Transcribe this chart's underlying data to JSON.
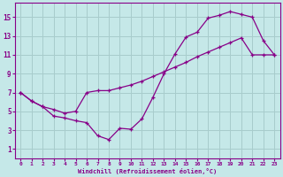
{
  "xlabel": "Windchill (Refroidissement éolien,°C)",
  "bg_color": "#c5e8e8",
  "line_color": "#880088",
  "grid_color": "#a8cccc",
  "xlim": [
    -0.5,
    23.5
  ],
  "ylim": [
    0.0,
    16.5
  ],
  "xticks": [
    0,
    1,
    2,
    3,
    4,
    5,
    6,
    7,
    8,
    9,
    10,
    11,
    12,
    13,
    14,
    15,
    16,
    17,
    18,
    19,
    20,
    21,
    22,
    23
  ],
  "yticks": [
    1,
    3,
    5,
    7,
    9,
    11,
    13,
    15
  ],
  "line1_x": [
    0,
    1,
    2,
    3,
    4,
    5,
    6,
    7,
    8,
    9,
    10,
    11,
    12,
    13,
    14,
    15,
    16,
    17,
    18,
    19,
    20,
    21,
    22,
    23
  ],
  "line1_y": [
    7.0,
    6.1,
    5.5,
    4.5,
    4.3,
    4.0,
    3.8,
    2.4,
    2.0,
    3.2,
    3.1,
    4.2,
    6.5,
    9.0,
    11.1,
    12.9,
    13.4,
    14.9,
    15.2,
    15.6,
    15.3,
    15.0,
    12.5,
    11.0
  ],
  "line2_x": [
    0,
    1,
    2,
    3,
    4,
    5,
    6,
    7,
    8,
    9,
    10,
    11,
    12,
    13,
    14,
    15,
    16,
    17,
    18,
    19,
    20,
    21,
    22,
    23
  ],
  "line2_y": [
    7.0,
    6.1,
    5.5,
    5.2,
    4.8,
    5.0,
    7.0,
    7.2,
    7.2,
    7.5,
    7.8,
    8.2,
    8.7,
    9.2,
    9.7,
    10.2,
    10.8,
    11.3,
    11.8,
    12.3,
    12.8,
    11.0,
    11.0,
    11.0
  ],
  "marker": "+",
  "markersize": 3.5,
  "linewidth": 0.9
}
